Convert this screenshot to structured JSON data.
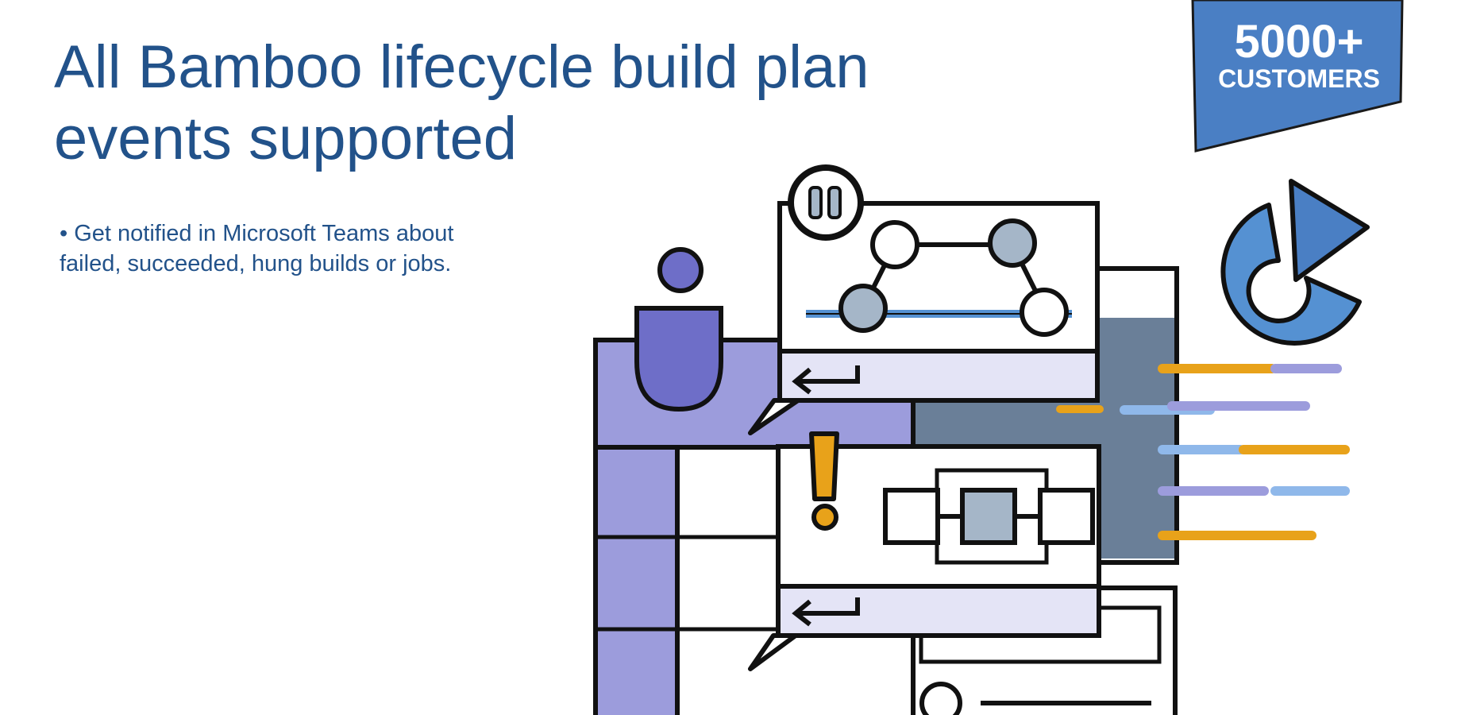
{
  "title": "All Bamboo lifecycle build plan events supported",
  "bullet": "• Get notified in Microsoft Teams about failed, succeeded, hung builds or jobs.",
  "badge": {
    "count": "5000+",
    "label": "CUSTOMERS"
  },
  "colors": {
    "text": "#22528a",
    "badge": "#4a7fc4",
    "purple": "#9c9cdc",
    "purple_dark": "#6e6ec8",
    "slate": "#6a7f98",
    "light_lavender": "#e4e4f6",
    "blue": "#5591d2",
    "yellow": "#e8a21a",
    "grey_node": "#a5b6c8"
  },
  "icons": {
    "pause": "pause-icon",
    "warning": "exclamation-icon",
    "reply": "reply-arrow-icon",
    "chart": "pie-chart-icon",
    "play": "play-triangle-icon",
    "person": "person-icon"
  }
}
